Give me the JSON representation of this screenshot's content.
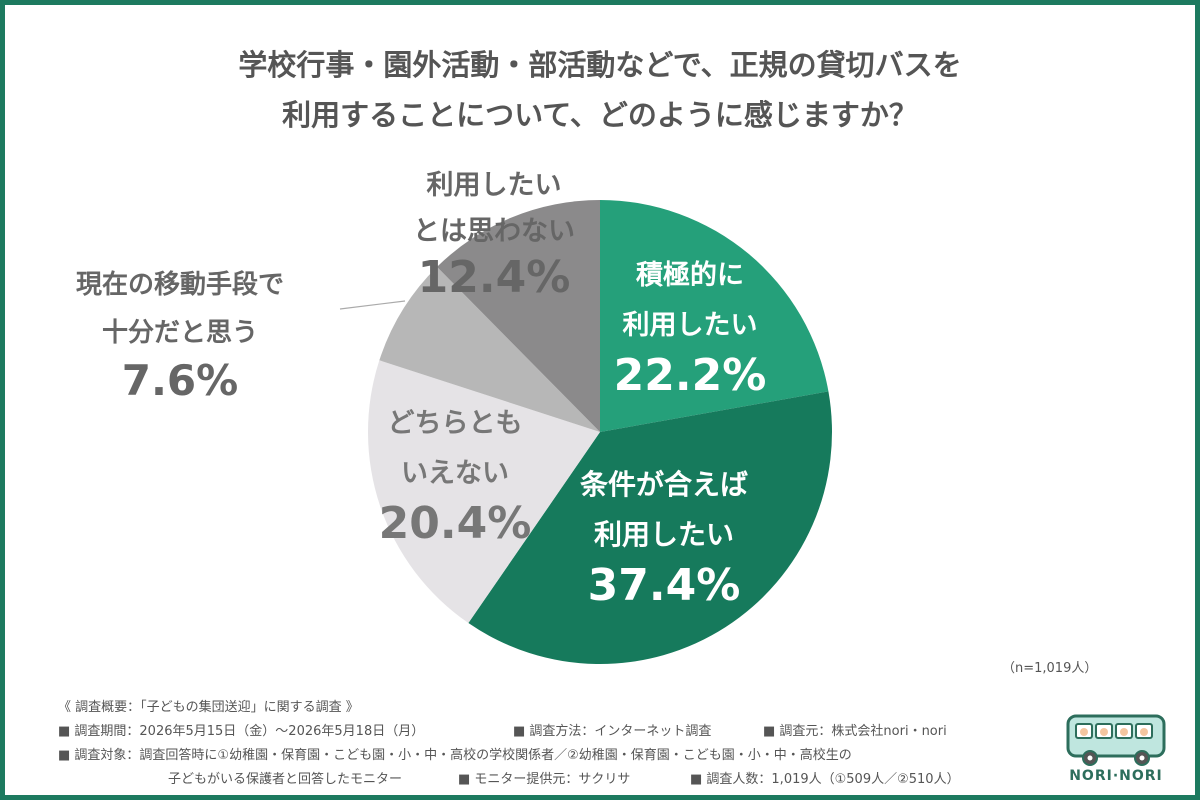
{
  "title_line1": "学校行事・園外活動・部活動などで、正規の貸切バスを",
  "title_line2": "利用することについて、どのように感じますか？",
  "sample_note": "（n=1,019人）",
  "footer": {
    "header": "《 調査概要：「子どもの集団送迎」に関する調査 》",
    "period": "■ 調査期間：2026年5月15日（金）〜2026年5月18日（月）",
    "method": "■ 調査方法：インターネット調査",
    "source": "■ 調査元：株式会社nori・nori",
    "target": "■ 調査対象：調査回答時に①幼稚園・保育園・こども園・小・中・高校の学校関係者／②幼稚園・保育園・こども園・小・中・高校生の",
    "target_cont": "子どもがいる保護者と回答したモニター",
    "provider": "■ モニター提供元：サクリサ",
    "count": "■ 調査人数：1,019人（①509人／②510人）"
  },
  "logo_text": "NORI·NORI",
  "chart_data": {
    "type": "pie",
    "title": "学校行事・園外活動・部活動などで、正規の貸切バスを利用することについて、どのように感じますか？",
    "start": "12 o'clock, clockwise",
    "slices": [
      {
        "label_lines": [
          "積極的に",
          "利用したい"
        ],
        "value": 22.2,
        "value_label": "22.2%",
        "color": "#25a07a",
        "text_color": "#ffffff",
        "label_position": "inside"
      },
      {
        "label_lines": [
          "条件が合えば",
          "利用したい"
        ],
        "value": 37.4,
        "value_label": "37.4%",
        "color": "#167a5c",
        "text_color": "#ffffff",
        "label_position": "inside"
      },
      {
        "label_lines": [
          "どちらとも",
          "いえない"
        ],
        "value": 20.4,
        "value_label": "20.4%",
        "color": "#e5e3e6",
        "text_color": "#777777",
        "label_position": "inside"
      },
      {
        "label_lines": [
          "現在の移動手段で",
          "十分だと思う"
        ],
        "value": 7.6,
        "value_label": "7.6%",
        "color": "#b7b7b7",
        "text_color": "#666666",
        "label_position": "outside"
      },
      {
        "label_lines": [
          "利用したい",
          "とは思わない"
        ],
        "value": 12.4,
        "value_label": "12.4%",
        "color": "#8b8a8b",
        "text_color": "#666666",
        "label_position": "straddle"
      }
    ]
  }
}
